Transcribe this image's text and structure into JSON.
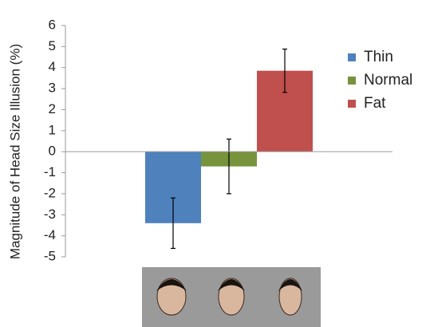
{
  "chart_data": {
    "type": "bar",
    "y_label": "Magnitude of Head Size Illusion (%)",
    "categories": [
      null
    ],
    "series": [
      {
        "name": "Thin",
        "color": "#4f81bd",
        "values": [
          -3.4
        ],
        "errors": [
          1.2
        ]
      },
      {
        "name": "Normal",
        "color": "#77933c",
        "values": [
          -0.7
        ],
        "errors": [
          1.3
        ]
      },
      {
        "name": "Fat",
        "color": "#c0504d",
        "values": [
          3.85
        ],
        "errors": [
          1.03
        ]
      }
    ],
    "ylim": [
      -5,
      6
    ],
    "yticks": [
      -5,
      -4,
      -3,
      -2,
      -1,
      0,
      1,
      2,
      3,
      4,
      5,
      6
    ],
    "legend": "right"
  }
}
